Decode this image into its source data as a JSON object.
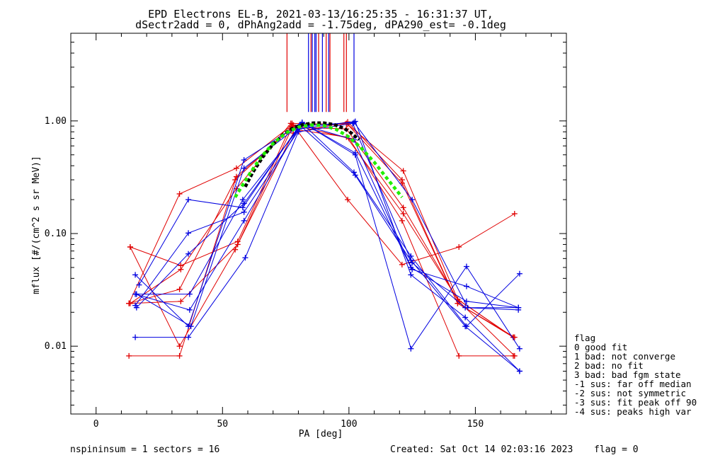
{
  "title_line1": "EPD Electrons EL-B, 2021-03-13/16:25:35 - 16:31:37 UT,",
  "title_line2": "dSectr2add = 0, dPhAng2add = -1.75deg, dPA290_est=  -0.1deg",
  "footer_left": "nspininsum =  1  sectors = 16",
  "footer_created": "Created: Sat Oct 14 02:03:16 2023",
  "footer_flag": "flag = 0",
  "legend_lines": [
    "flag",
    " 0 good fit",
    " 1 bad: not converge",
    " 2 bad: no fit",
    " 3 bad: bad fgm state",
    "-1 sus: far off median",
    "-2 sus: not symmetric",
    "-3 sus: fit peak off 90",
    "-4 sus: peaks high var"
  ],
  "colors": {
    "red": "#e00000",
    "blue": "#0000e0",
    "black": "#000000",
    "green": "#22ee00"
  },
  "chart_data": {
    "type": "line",
    "xlabel": "PA [deg]",
    "ylabel": "mflux [#/(cm^2 s sr MeV)]",
    "xlim": [
      -10,
      186
    ],
    "ylim": [
      0.0025,
      6.0
    ],
    "yscale": "log",
    "x_ticks": [
      0,
      50,
      100,
      150
    ],
    "x_tick_labels": [
      "0",
      "50",
      "100",
      "150"
    ],
    "y_ticks": [
      0.01,
      0.1,
      1.0
    ],
    "y_tick_labels": [
      "0.01",
      "0.10",
      "1.00"
    ],
    "series": [
      {
        "color": "red",
        "x": [
          13.5,
          33.5,
          56.0,
          77.5,
          99.5,
          121.0,
          143.5,
          165.5
        ],
        "y": [
          0.076,
          0.052,
          0.085,
          0.95,
          0.2,
          0.053,
          0.076,
          0.15
        ]
      },
      {
        "color": "red",
        "x": [
          13.0,
          33.0,
          55.5,
          77.0,
          99.0,
          121.5,
          143.0,
          165.0
        ],
        "y": [
          0.024,
          0.225,
          0.38,
          0.9,
          0.95,
          0.36,
          0.026,
          0.012
        ]
      },
      {
        "color": "red",
        "x": [
          13.0,
          33.0,
          55.5,
          77.0,
          99.0,
          121.5,
          143.5,
          165.5
        ],
        "y": [
          0.0082,
          0.0082,
          0.32,
          0.85,
          0.72,
          0.15,
          0.025,
          0.0082
        ]
      },
      {
        "color": "red",
        "x": [
          13.5,
          33.0,
          55.0,
          78.0,
          99.5,
          121.0,
          143.0,
          165.0
        ],
        "y": [
          0.076,
          0.01,
          0.072,
          0.78,
          0.98,
          0.3,
          0.024,
          0.012
        ]
      },
      {
        "color": "red",
        "x": [
          13.0,
          33.5,
          56.0,
          78.0,
          100.0,
          121.0,
          143.5,
          165.0
        ],
        "y": [
          0.024,
          0.025,
          0.08,
          0.92,
          0.7,
          0.13,
          0.0082,
          0.0082
        ]
      },
      {
        "color": "red",
        "x": [
          13.0,
          33.0,
          55.0,
          77.5,
          99.0,
          121.5,
          143.0,
          165.0
        ],
        "y": [
          0.024,
          0.032,
          0.3,
          0.88,
          0.85,
          0.17,
          0.026,
          0.012
        ]
      },
      {
        "color": "red",
        "x": [
          13.5,
          33.5,
          55.5,
          77.0,
          99.5,
          121.0,
          143.0,
          165.5
        ],
        "y": [
          0.024,
          0.048,
          0.25,
          0.95,
          0.93,
          0.28,
          0.024,
          0.012
        ]
      },
      {
        "color": "blue",
        "x": [
          15.5,
          36.5,
          58.5,
          81.5,
          102.5,
          124.5,
          146.5,
          167.5
        ],
        "y": [
          0.043,
          0.015,
          0.45,
          0.97,
          0.5,
          0.0095,
          0.051,
          0.0095
        ]
      },
      {
        "color": "blue",
        "x": [
          16.0,
          37.0,
          58.0,
          81.0,
          102.0,
          125.0,
          147.0,
          167.0
        ],
        "y": [
          0.029,
          0.029,
          0.2,
          0.9,
          0.97,
          0.2,
          0.022,
          0.022
        ]
      },
      {
        "color": "blue",
        "x": [
          15.5,
          36.5,
          58.5,
          80.5,
          102.5,
          124.5,
          146.0,
          167.5
        ],
        "y": [
          0.023,
          0.101,
          0.155,
          0.85,
          0.99,
          0.043,
          0.018,
          0.006
        ]
      },
      {
        "color": "blue",
        "x": [
          16.0,
          37.5,
          58.5,
          81.5,
          102.0,
          124.5,
          146.5,
          167.5
        ],
        "y": [
          0.029,
          0.015,
          0.38,
          0.95,
          0.35,
          0.063,
          0.015,
          0.044
        ]
      },
      {
        "color": "blue",
        "x": [
          17.0,
          36.5,
          58.0,
          80.5,
          102.5,
          125.0,
          146.0,
          167.0
        ],
        "y": [
          0.035,
          0.2,
          0.17,
          0.92,
          0.33,
          0.055,
          0.022,
          0.021
        ]
      },
      {
        "color": "blue",
        "x": [
          15.5,
          37.0,
          58.5,
          81.0,
          102.0,
          125.0,
          146.5,
          167.0
        ],
        "y": [
          0.029,
          0.021,
          0.13,
          0.93,
          0.68,
          0.048,
          0.034,
          0.022
        ]
      },
      {
        "color": "blue",
        "x": [
          15.5,
          36.5,
          59.0,
          80.0,
          101.5,
          124.5,
          146.0,
          167.5
        ],
        "y": [
          0.012,
          0.012,
          0.061,
          0.8,
          0.95,
          0.058,
          0.015,
          0.006
        ]
      },
      {
        "color": "blue",
        "x": [
          16.0,
          36.5,
          58.5,
          81.5,
          102.5,
          124.5,
          146.5,
          167.0
        ],
        "y": [
          0.022,
          0.066,
          0.185,
          0.97,
          0.52,
          0.05,
          0.025,
          0.022
        ]
      }
    ],
    "fit_black": {
      "x": [
        59,
        62,
        66,
        70,
        74,
        78,
        82,
        86,
        90,
        94,
        98,
        101,
        104
      ],
      "y": [
        0.26,
        0.35,
        0.48,
        0.62,
        0.76,
        0.87,
        0.93,
        0.96,
        0.96,
        0.93,
        0.86,
        0.78,
        0.68
      ]
    },
    "fit_green": {
      "x": [
        55,
        60,
        65,
        70,
        75,
        80,
        85,
        90,
        95,
        100,
        105,
        110,
        115,
        121
      ],
      "y": [
        0.21,
        0.32,
        0.47,
        0.63,
        0.78,
        0.88,
        0.92,
        0.91,
        0.84,
        0.72,
        0.57,
        0.43,
        0.31,
        0.21
      ]
    },
    "markers": [
      {
        "color": "red",
        "x": 75.5
      },
      {
        "color": "red",
        "x": 85.0
      },
      {
        "color": "red",
        "x": 88.0
      },
      {
        "color": "red",
        "x": 91.0
      },
      {
        "color": "red",
        "x": 92.5
      },
      {
        "color": "red",
        "x": 98.0
      },
      {
        "color": "red",
        "x": 99.0
      },
      {
        "color": "blue",
        "x": 84.0
      },
      {
        "color": "blue",
        "x": 85.5
      },
      {
        "color": "blue",
        "x": 86.5
      },
      {
        "color": "blue",
        "x": 87.0
      },
      {
        "color": "blue",
        "x": 89.5
      },
      {
        "color": "blue",
        "x": 92.0
      },
      {
        "color": "blue",
        "x": 102.0
      }
    ]
  }
}
